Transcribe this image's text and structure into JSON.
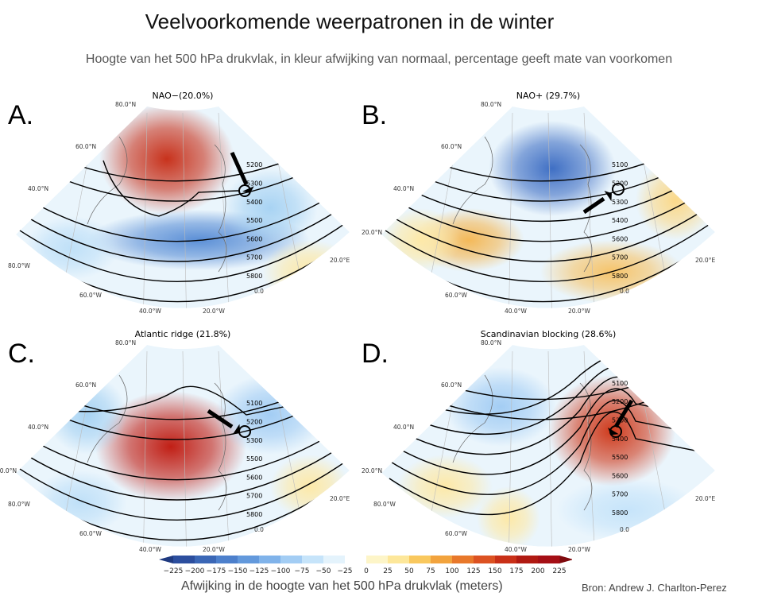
{
  "title": "Veelvoorkomende weerpatronen in de winter",
  "subtitle": "Hoogte van het 500 hPa drukvlak, in kleur afwijking van normaal, percentage geeft mate van voorkomen",
  "panels": [
    {
      "letter": "A.",
      "title": "NAO−(20.0%)",
      "lat_labels": [
        "80.0°N",
        "60.0°N",
        "40.0°N",
        "80.0°W"
      ],
      "lon_labels": [
        "60.0°W",
        "40.0°W",
        "20.0°W",
        "0.0",
        "20.0°E"
      ],
      "contour_labels": [
        "5200",
        "5300",
        "5400",
        "5500",
        "5600",
        "5700",
        "5800"
      ]
    },
    {
      "letter": "B.",
      "title": "NAO+ (29.7%)",
      "lat_labels": [
        "80.0°N",
        "60.0°N",
        "40.0°N",
        "20.0°N"
      ],
      "lon_labels": [
        "60.0°W",
        "40.0°W",
        "20.0°W",
        "0.0",
        "20.0°E"
      ],
      "contour_labels": [
        "5100",
        "5200",
        "5300",
        "5400",
        "5600",
        "5700",
        "5800"
      ]
    },
    {
      "letter": "C.",
      "title": "Atlantic ridge (21.8%)",
      "lat_labels": [
        "80.0°N",
        "60.0°N",
        "40.0°N",
        "20.0°N",
        "80.0°W"
      ],
      "lon_labels": [
        "60.0°W",
        "40.0°W",
        "20.0°W",
        "0.0",
        "20.0°E"
      ],
      "contour_labels": [
        "5100",
        "5200",
        "5300",
        "5500",
        "5600",
        "5700",
        "5800"
      ]
    },
    {
      "letter": "D.",
      "title": "Scandinavian blocking (28.6%)",
      "lat_labels": [
        "80.0°N",
        "60.0°N",
        "40.0°N",
        "20.0°N",
        "80.0°W"
      ],
      "lon_labels": [
        "60.0°W",
        "40.0°W",
        "20.0°W",
        "0.0",
        "20.0°E"
      ],
      "contour_labels": [
        "5100",
        "5200",
        "5300",
        "5400",
        "5500",
        "5600",
        "5700",
        "5800"
      ]
    }
  ],
  "colorbar": {
    "ticks": [
      "−225",
      "−200",
      "−175",
      "−150",
      "−125",
      "−100",
      "−75",
      "−50",
      "−25",
      "0",
      "25",
      "50",
      "75",
      "100",
      "125",
      "150",
      "175",
      "200",
      "225"
    ],
    "colors": [
      "#2c4e9e",
      "#3b67b6",
      "#4d80cc",
      "#6399dc",
      "#80b3ea",
      "#a3cdf4",
      "#c6e4fa",
      "#e4f3fc",
      "#ffffff",
      "#fdf5c8",
      "#fde79a",
      "#f9c85e",
      "#f2a33d",
      "#e8782b",
      "#dc5222",
      "#c93018",
      "#b01a12",
      "#a50f15"
    ],
    "low_color": "#1f3a80",
    "high_color": "#7f0a0e",
    "label": "Afwijking in de hoogte van het 500 hPa drukvlak (meters)"
  },
  "source": "Bron: Andrew J. Charlton-Perez"
}
